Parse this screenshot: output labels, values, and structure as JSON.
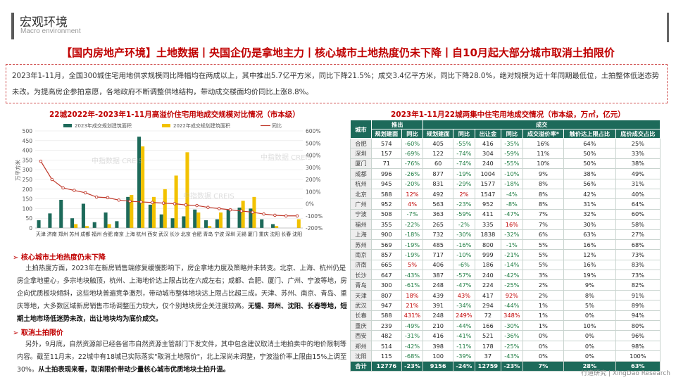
{
  "header": {
    "title": "宏观环境",
    "subtitle": "Macro environment"
  },
  "main_title": "【国内房地产环境】土地数据丨央国企仍是拿地主力丨核心城市土地热度仍未下降丨自10月起大部分城市取消土拍限价",
  "summary": "2023年1-11月，全国300城住宅用地供求规模同比降幅均在两成以上，其中推出5.7亿平方米，同比下降21.5%；成交3.4亿平方米，同比下降28.0%，绝对规模为近十年同期最低位，土拍整体低迷态势未改。为提高房企参拍意愿，各地政府不断调整供地结构，带动成交楼面均价同比上涨8.8%。",
  "chart_left_title": "22城2022年-2023年1-11月高溢价住宅用地成交规模对比情况（市本级）",
  "chart_right_title": "2023年1-11月22城两集中住宅用地成交情况（市本级，万㎡，亿元）",
  "chart_data": {
    "type": "bar",
    "title": "22城2022年-2023年1-11月高溢价住宅用地成交规模对比情况（市本级）",
    "categories": [
      "天津",
      "济南",
      "郑州",
      "苏州",
      "成都",
      "福州",
      "合肥",
      "南京",
      "上海",
      "杭州",
      "西安",
      "武汉",
      "长沙",
      "北京",
      "合肥2",
      "青岛",
      "宁波",
      "深圳",
      "无锡",
      "厦门",
      "重庆",
      "沈阳",
      "长春",
      "沈阳2"
    ],
    "tick_labels": [
      "天津",
      "济南",
      "郑州",
      "苏州",
      "成都",
      "福州",
      "合肥",
      "南京",
      "上海",
      "杭州",
      "西安",
      "武汉",
      "长沙",
      "北京",
      "合肥",
      "青岛",
      "宁波",
      "深圳",
      "无锡",
      "厦门",
      "重庆",
      "沈阳",
      "长春",
      "沈阳"
    ],
    "series": [
      {
        "name": "2023年成交规划建筑面积",
        "color": "#1d6a5a",
        "values": [
          40,
          75,
          145,
          50,
          125,
          30,
          80,
          35,
          160,
          470,
          120,
          70,
          50,
          60,
          95,
          40,
          45,
          95,
          105,
          100,
          45,
          20,
          0,
          0
        ]
      },
      {
        "name": "2022年成交规划建筑面积",
        "color": "#f2c200",
        "values": [
          0,
          0,
          0,
          20,
          10,
          0,
          20,
          0,
          170,
          420,
          160,
          200,
          270,
          390,
          80,
          10,
          80,
          0,
          140,
          160,
          0,
          10,
          0,
          45
        ]
      },
      {
        "name": "同比",
        "color": "#c0392b",
        "axis": "right",
        "values": [
          350,
          200,
          130,
          110,
          90,
          55,
          50,
          30,
          20,
          15,
          10,
          5,
          0,
          -10,
          -15,
          -30,
          -40,
          -50,
          -60,
          -70,
          -85,
          -95,
          -100,
          -100
        ]
      }
    ],
    "ylim_left": [
      0,
      500
    ],
    "yticks_left": [
      0,
      50,
      100,
      150,
      200,
      250,
      300,
      350,
      400,
      450,
      500
    ],
    "ylim_right": [
      -200,
      600
    ],
    "yticks_right": [
      -200,
      -100,
      0,
      100,
      200,
      300,
      400,
      500,
      600
    ],
    "yticks_right_labels": [
      "-200%",
      "-100%",
      "0%",
      "100%",
      "200%",
      "300%",
      "400%",
      "500%",
      "600%"
    ],
    "ylabel_left": "万平方米",
    "legend_position": "top"
  },
  "section1": {
    "title": "核心城市土地热度仍未下降",
    "text": "土拍热度方面，2023年在新房销售端修复缓慢影响下，房企拿地力度及策略并未转变。北京、上海、杭州仍是房企拿地重心，多宗地块触顶，杭州、上海地价达上限占比在六成左右；成都、合肥、厦门、广州、宁波等地，房企向优质板块倾斜，这些地块普遍竞争激烈，带动城市整体地块达上限占比超三成。天津、苏州、南京、青岛、重庆等地，大多数区域新房销售市场调整压力较大，仅个别地块房企关注度较高。",
    "bold": "无锡、郑州、沈阳、长春等地，短期土地市场低迷势未改，出让地块均为底价成交。"
  },
  "section2": {
    "title": "取消土拍限价",
    "text": "另外，9月底，自然资源部已经各省市自然资源主管部门下发文件，其中包含建议取消土地拍卖中的地价限制等内容。截至11月末，22城中有18城已实际落实\"取消土地限价\"，北上深尚未调整，宁波溢价率上限由15%上调至30%。",
    "bold": "从土拍表现来看，取消限价带动少量核心城市优质地块土拍升温。"
  },
  "table": {
    "header_groups": [
      "城市",
      "推出",
      "成交"
    ],
    "columns": [
      "规划建面",
      "同比",
      "规划建面",
      "同比",
      "出让金",
      "同比",
      "成交溢价率*",
      "触价达上限占比",
      "底价成交占比"
    ],
    "rows": [
      [
        "合肥",
        "574",
        "-60%",
        "405",
        "-55%",
        "416",
        "-35%",
        "16%",
        "64%",
        "25%"
      ],
      [
        "深圳",
        "157",
        "-69%",
        "122",
        "-74%",
        "304",
        "-59%",
        "11%",
        "50%",
        "33%"
      ],
      [
        "厦门",
        "71",
        "-76%",
        "60",
        "-74%",
        "240",
        "-55%",
        "10%",
        "50%",
        "38%"
      ],
      [
        "成都",
        "996",
        "-26%",
        "877",
        "-19%",
        "1004",
        "-10%",
        "9%",
        "38%",
        "49%"
      ],
      [
        "杭州",
        "945",
        "-20%",
        "831",
        "-29%",
        "1577",
        "-18%",
        "8%",
        "56%",
        "31%"
      ],
      [
        "北京",
        "588",
        "12%",
        "492",
        "2%",
        "1547",
        "-4%",
        "8%",
        "42%",
        "40%"
      ],
      [
        "广州",
        "952",
        "4%",
        "563",
        "-23%",
        "952",
        "-8%",
        "8%",
        "31%",
        "64%"
      ],
      [
        "宁波",
        "508",
        "-7%",
        "363",
        "-59%",
        "411",
        "-47%",
        "7%",
        "32%",
        "60%"
      ],
      [
        "福州",
        "355",
        "-22%",
        "265",
        "-2%",
        "335",
        "16%",
        "7%",
        "30%",
        "58%"
      ],
      [
        "上海",
        "900",
        "-18%",
        "732",
        "-30%",
        "1838",
        "-32%",
        "6%",
        "63%",
        "27%"
      ],
      [
        "苏州",
        "569",
        "-19%",
        "485",
        "-16%",
        "800",
        "-1%",
        "5%",
        "16%",
        "68%"
      ],
      [
        "南京",
        "857",
        "-19%",
        "717",
        "-10%",
        "999",
        "-21%",
        "5%",
        "12%",
        "73%"
      ],
      [
        "济南",
        "665",
        "5%",
        "406",
        "-6%",
        "186",
        "-14%",
        "5%",
        "16%",
        "83%"
      ],
      [
        "长沙",
        "647",
        "-43%",
        "387",
        "-57%",
        "240",
        "-42%",
        "3%",
        "19%",
        "73%"
      ],
      [
        "青岛",
        "300",
        "-61%",
        "248",
        "-47%",
        "224",
        "-25%",
        "2%",
        "9%",
        "82%"
      ],
      [
        "天津",
        "807",
        "18%",
        "439",
        "43%",
        "417",
        "92%",
        "2%",
        "8%",
        "91%"
      ],
      [
        "武汉",
        "947",
        "21%",
        "391",
        "-34%",
        "294",
        "-44%",
        "1%",
        "5%",
        "89%"
      ],
      [
        "长春",
        "588",
        "431%",
        "248",
        "249%",
        "72",
        "348%",
        "1%",
        "0%",
        "94%"
      ],
      [
        "重庆",
        "239",
        "-49%",
        "210",
        "-44%",
        "166",
        "-30%",
        "1%",
        "10%",
        "80%"
      ],
      [
        "西安",
        "482",
        "-31%",
        "416",
        "-41%",
        "521",
        "-36%",
        "0%",
        "0%",
        "96%"
      ],
      [
        "郑州",
        "514",
        "-42%",
        "398",
        "-11%",
        "178",
        "-25%",
        "0%",
        "0%",
        "98%"
      ],
      [
        "沈阳",
        "115",
        "-68%",
        "100",
        "-39%",
        "37",
        "-43%",
        "0%",
        "0%",
        "100%"
      ]
    ],
    "total": [
      "合计",
      "12776",
      "-23%",
      "9156",
      "-24%",
      "12759",
      "-23%",
      "7%",
      "28%",
      "63%"
    ]
  },
  "footer": "行道研究 | XingDao Research",
  "watermark": "中指数据 CREIS"
}
